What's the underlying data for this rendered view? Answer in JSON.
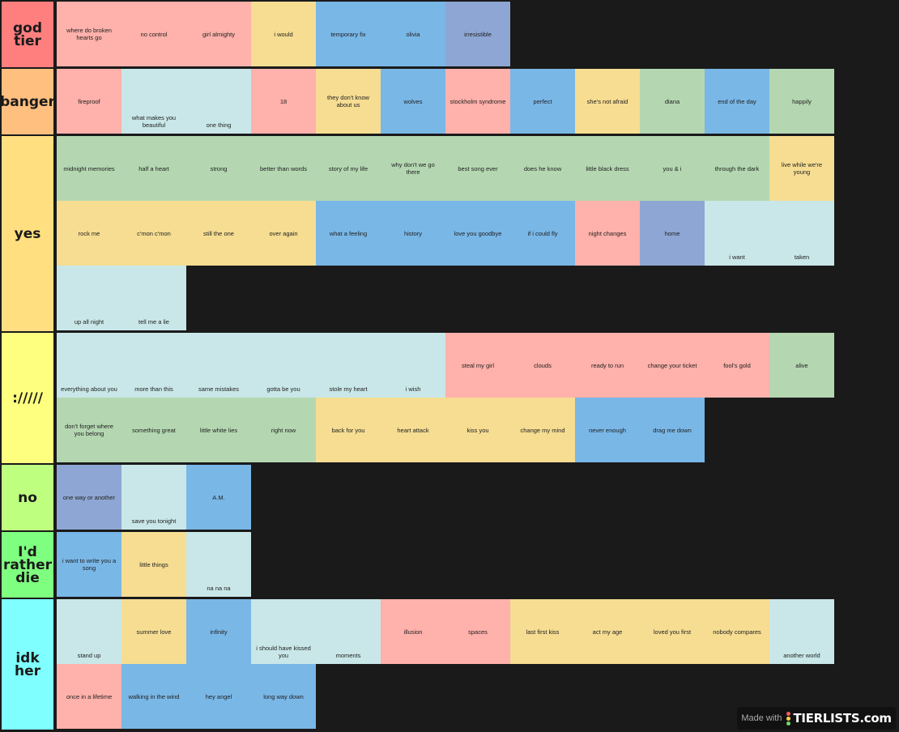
{
  "colors": {
    "pink": "#ffb1ab",
    "yellow": "#f6dd92",
    "blue": "#79b7e7",
    "purple": "#8ea6d3",
    "green": "#b4d7b1",
    "light": "#c9e7e8",
    "background": "#1a1a1a"
  },
  "tiers": [
    {
      "label": "god tier",
      "color": "#ff7f7f",
      "items": [
        {
          "text": "where do broken hearts go",
          "color": "pink"
        },
        {
          "text": "no control",
          "color": "pink"
        },
        {
          "text": "girl almighty",
          "color": "pink"
        },
        {
          "text": "i would",
          "color": "yellow"
        },
        {
          "text": "temporary fix",
          "color": "blue"
        },
        {
          "text": "olivia",
          "color": "blue"
        },
        {
          "text": "irresistible",
          "color": "purple"
        }
      ]
    },
    {
      "label": "banger",
      "color": "#ffbf7f",
      "items": [
        {
          "text": "fireproof",
          "color": "pink"
        },
        {
          "text": "what makes you beautiful",
          "color": "light"
        },
        {
          "text": "one thing",
          "color": "light"
        },
        {
          "text": "18",
          "color": "pink"
        },
        {
          "text": "they don't know about us",
          "color": "yellow"
        },
        {
          "text": "wolves",
          "color": "blue"
        },
        {
          "text": "stockholm syndrome",
          "color": "pink"
        },
        {
          "text": "perfect",
          "color": "blue"
        },
        {
          "text": "she's not afraid",
          "color": "yellow"
        },
        {
          "text": "diana",
          "color": "green"
        },
        {
          "text": "end of the day",
          "color": "blue"
        },
        {
          "text": "happily",
          "color": "green"
        }
      ]
    },
    {
      "label": "yes",
      "color": "#ffdf80",
      "items": [
        {
          "text": "midnight memories",
          "color": "green"
        },
        {
          "text": "half a heart",
          "color": "green"
        },
        {
          "text": "strong",
          "color": "green"
        },
        {
          "text": "better than words",
          "color": "green"
        },
        {
          "text": "story of my life",
          "color": "green"
        },
        {
          "text": "why don't we go there",
          "color": "green"
        },
        {
          "text": "best song ever",
          "color": "green"
        },
        {
          "text": "does he know",
          "color": "green"
        },
        {
          "text": "little black dress",
          "color": "green"
        },
        {
          "text": "you & i",
          "color": "green"
        },
        {
          "text": "through the dark",
          "color": "green"
        },
        {
          "text": "live while we're young",
          "color": "yellow"
        },
        {
          "text": "rock me",
          "color": "yellow"
        },
        {
          "text": "c'mon c'mon",
          "color": "yellow"
        },
        {
          "text": "still the one",
          "color": "yellow"
        },
        {
          "text": "over again",
          "color": "yellow"
        },
        {
          "text": "what a feeling",
          "color": "blue"
        },
        {
          "text": "history",
          "color": "blue"
        },
        {
          "text": "love you goodbye",
          "color": "blue"
        },
        {
          "text": "if i could fly",
          "color": "blue"
        },
        {
          "text": "night changes",
          "color": "pink"
        },
        {
          "text": "home",
          "color": "purple"
        },
        {
          "text": "i want",
          "color": "light"
        },
        {
          "text": "taken",
          "color": "light"
        },
        {
          "text": "up all night",
          "color": "light"
        },
        {
          "text": "tell me a lie",
          "color": "light"
        }
      ]
    },
    {
      "label": "://///",
      "color": "#ffff7f",
      "items": [
        {
          "text": "everything about you",
          "color": "light"
        },
        {
          "text": "more than this",
          "color": "light"
        },
        {
          "text": "same mistakes",
          "color": "light"
        },
        {
          "text": "gotta be you",
          "color": "light"
        },
        {
          "text": "stole my heart",
          "color": "light"
        },
        {
          "text": "i wish",
          "color": "light"
        },
        {
          "text": "steal my girl",
          "color": "pink"
        },
        {
          "text": "clouds",
          "color": "pink"
        },
        {
          "text": "ready to run",
          "color": "pink"
        },
        {
          "text": "change your ticket",
          "color": "pink"
        },
        {
          "text": "fool's gold",
          "color": "pink"
        },
        {
          "text": "alive",
          "color": "green"
        },
        {
          "text": "don't forget where you belong",
          "color": "green"
        },
        {
          "text": "something great",
          "color": "green"
        },
        {
          "text": "little white lies",
          "color": "green"
        },
        {
          "text": "right now",
          "color": "green"
        },
        {
          "text": "back for you",
          "color": "yellow"
        },
        {
          "text": "heart attack",
          "color": "yellow"
        },
        {
          "text": "kiss you",
          "color": "yellow"
        },
        {
          "text": "change my mind",
          "color": "yellow"
        },
        {
          "text": "never enough",
          "color": "blue"
        },
        {
          "text": "drag me down",
          "color": "blue"
        }
      ]
    },
    {
      "label": "no",
      "color": "#bfff7f",
      "items": [
        {
          "text": "one way or another",
          "color": "purple"
        },
        {
          "text": "save you tonight",
          "color": "light"
        },
        {
          "text": "A.M.",
          "color": "blue"
        }
      ]
    },
    {
      "label": "I'd rather die",
      "color": "#7fff7f",
      "items": [
        {
          "text": "i want to write you a song",
          "color": "blue"
        },
        {
          "text": "little things",
          "color": "yellow"
        },
        {
          "text": "na na na",
          "color": "light"
        }
      ]
    },
    {
      "label": "idk her",
      "color": "#7fffff",
      "items": [
        {
          "text": "stand up",
          "color": "light"
        },
        {
          "text": "summer love",
          "color": "yellow"
        },
        {
          "text": "infinity",
          "color": "blue"
        },
        {
          "text": "i should have kissed you",
          "color": "light"
        },
        {
          "text": "moments",
          "color": "light"
        },
        {
          "text": "illusion",
          "color": "pink"
        },
        {
          "text": "spaces",
          "color": "pink"
        },
        {
          "text": "last first kiss",
          "color": "yellow"
        },
        {
          "text": "act my age",
          "color": "yellow"
        },
        {
          "text": "loved you first",
          "color": "yellow"
        },
        {
          "text": "nobody compares",
          "color": "yellow"
        },
        {
          "text": "another world",
          "color": "light"
        },
        {
          "text": "once in a lifetime",
          "color": "pink"
        },
        {
          "text": "walking in the wind",
          "color": "blue"
        },
        {
          "text": "hey angel",
          "color": "blue"
        },
        {
          "text": "long way down",
          "color": "blue"
        }
      ]
    }
  ],
  "watermark": {
    "made_with": "Made with",
    "brand": "TIERLISTS.com"
  }
}
